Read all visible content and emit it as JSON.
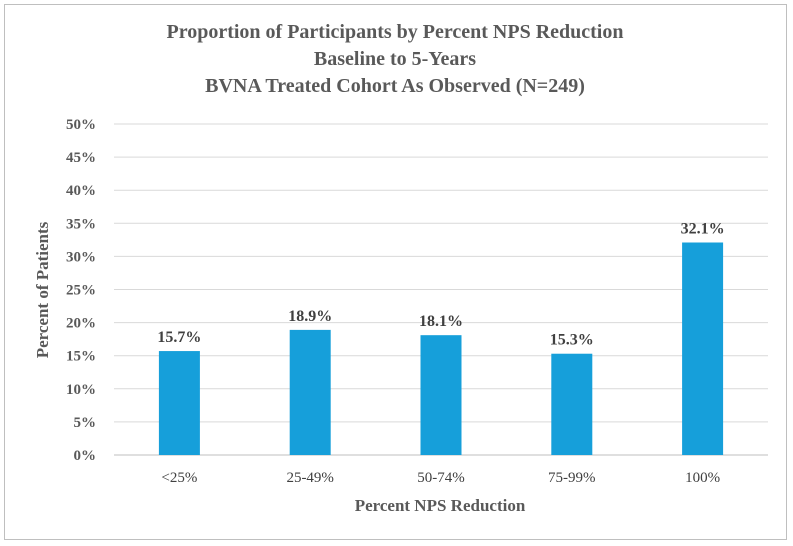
{
  "chart_data": {
    "type": "bar",
    "title": [
      "Proportion of Participants by Percent NPS Reduction",
      "Baseline to 5-Years",
      "BVNA Treated Cohort As Observed (N=249)"
    ],
    "xlabel": "Percent NPS Reduction",
    "ylabel": "Percent of Patients",
    "categories": [
      "<25%",
      "25-49%",
      "50-74%",
      "75-99%",
      "100%"
    ],
    "values": [
      15.7,
      18.9,
      18.1,
      15.3,
      32.1
    ],
    "data_labels": [
      "15.7%",
      "18.9%",
      "18.1%",
      "15.3%",
      "32.1%"
    ],
    "ylim": [
      0,
      50
    ],
    "yticks": [
      0,
      5,
      10,
      15,
      20,
      25,
      30,
      35,
      40,
      45,
      50
    ],
    "ytick_labels": [
      "0%",
      "5%",
      "10%",
      "15%",
      "20%",
      "25%",
      "30%",
      "35%",
      "40%",
      "45%",
      "50%"
    ],
    "grid": true,
    "legend": "none",
    "bar_color": "#169FDA"
  }
}
